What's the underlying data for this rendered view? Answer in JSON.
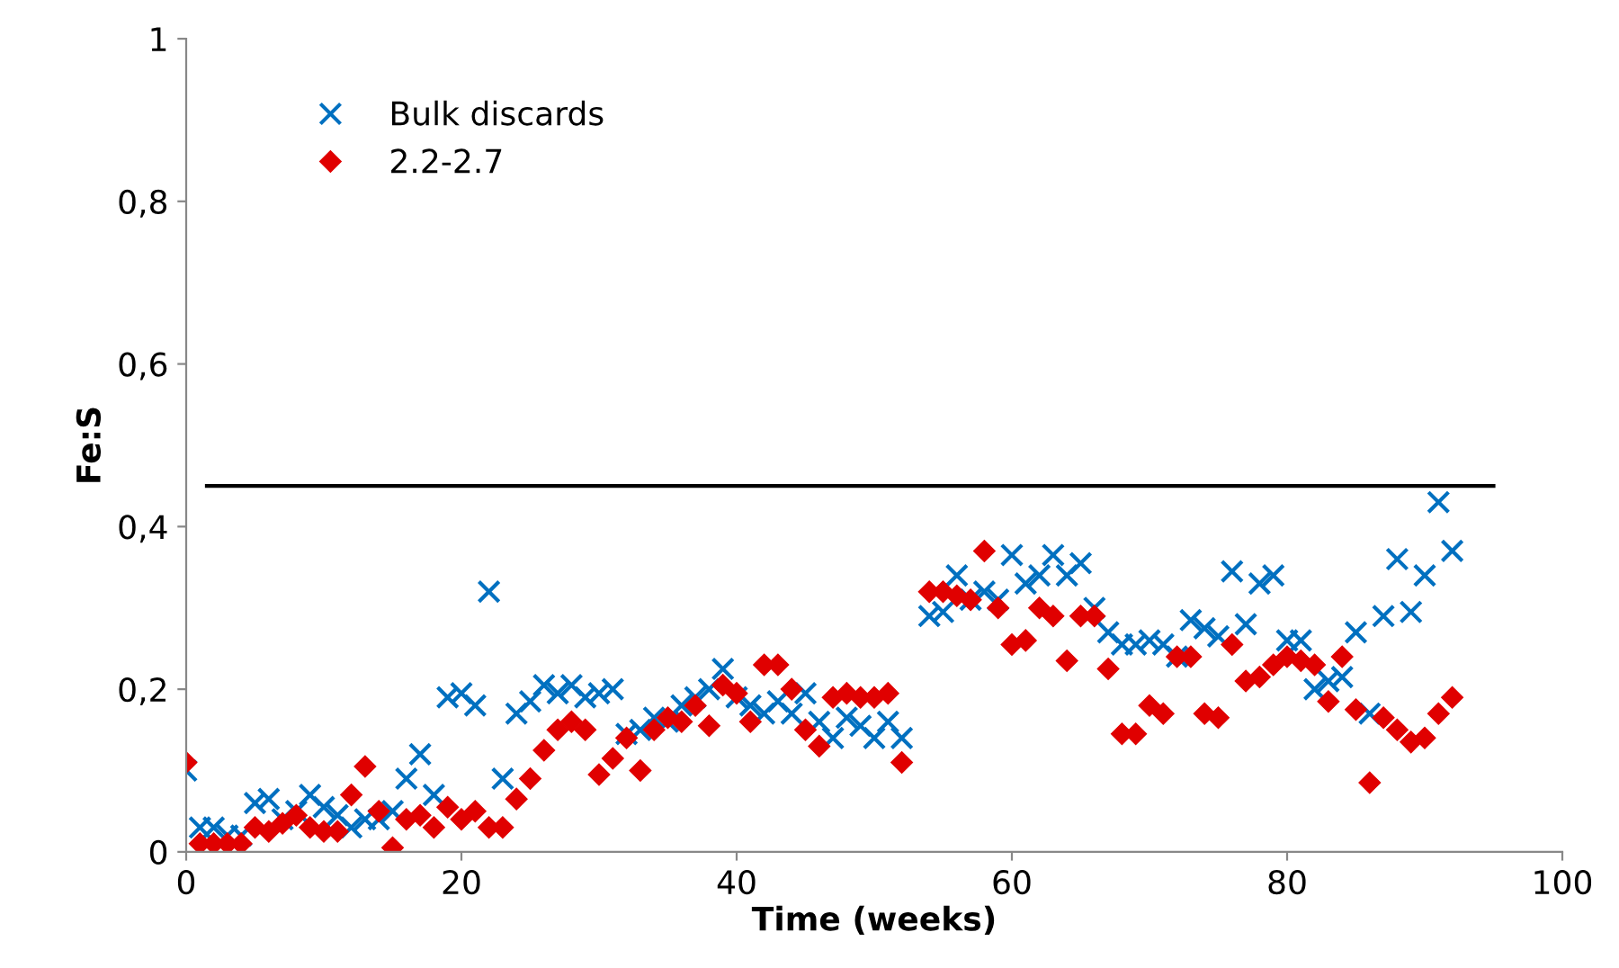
{
  "chart_data": {
    "type": "scatter",
    "xlabel": "Time (weeks)",
    "ylabel": "Fe:S",
    "x": [
      0,
      1,
      2,
      3,
      4,
      5,
      6,
      7,
      8,
      9,
      10,
      11,
      12,
      13,
      14,
      15,
      16,
      17,
      18,
      19,
      20,
      21,
      22,
      23,
      24,
      25,
      26,
      27,
      28,
      29,
      30,
      31,
      32,
      33,
      34,
      35,
      36,
      37,
      38,
      39,
      40,
      41,
      42,
      43,
      44,
      45,
      46,
      47,
      48,
      49,
      50,
      51,
      52,
      54,
      55,
      56,
      57,
      58,
      59,
      60,
      61,
      62,
      63,
      64,
      65,
      66,
      67,
      68,
      69,
      70,
      71,
      72,
      73,
      74,
      75,
      76,
      77,
      78,
      79,
      80,
      81,
      82,
      83,
      84,
      85,
      86,
      87,
      88,
      89,
      90,
      91,
      92
    ],
    "series": [
      {
        "name": "Bulk discards",
        "color": "#0070c0",
        "marker": "cross",
        "values": [
          0.1,
          0.03,
          0.03,
          0.02,
          0.02,
          0.06,
          0.065,
          0.04,
          0.05,
          0.07,
          0.055,
          0.045,
          0.03,
          0.04,
          0.04,
          0.05,
          0.09,
          0.12,
          0.07,
          0.19,
          0.195,
          0.18,
          0.32,
          0.09,
          0.17,
          0.185,
          0.205,
          0.195,
          0.205,
          0.19,
          0.195,
          0.2,
          0.145,
          0.15,
          0.165,
          0.16,
          0.18,
          0.19,
          0.2,
          0.225,
          0.19,
          0.18,
          0.17,
          0.185,
          0.17,
          0.195,
          0.16,
          0.14,
          0.165,
          0.155,
          0.14,
          0.16,
          0.14,
          0.29,
          0.295,
          0.34,
          0.31,
          0.32,
          0.31,
          0.365,
          0.33,
          0.34,
          0.365,
          0.34,
          0.355,
          0.3,
          0.27,
          0.255,
          0.255,
          0.26,
          0.255,
          0.24,
          0.285,
          0.275,
          0.265,
          0.345,
          0.28,
          0.33,
          0.34,
          0.26,
          0.26,
          0.2,
          0.21,
          0.215,
          0.27,
          0.17,
          0.29,
          0.36,
          0.295,
          0.34,
          0.43,
          0.37
        ]
      },
      {
        "name": "2.2-2.7",
        "color": "#e00000",
        "marker": "diamond",
        "values": [
          0.11,
          0.01,
          0.01,
          0.01,
          0.01,
          0.03,
          0.025,
          0.035,
          0.045,
          0.03,
          0.025,
          0.025,
          0.07,
          0.105,
          0.05,
          0.005,
          0.04,
          0.045,
          0.03,
          0.055,
          0.04,
          0.05,
          0.03,
          0.03,
          0.065,
          0.09,
          0.125,
          0.15,
          0.16,
          0.15,
          0.095,
          0.115,
          0.14,
          0.1,
          0.15,
          0.165,
          0.16,
          0.18,
          0.155,
          0.205,
          0.195,
          0.16,
          0.23,
          0.23,
          0.2,
          0.15,
          0.13,
          0.19,
          0.195,
          0.19,
          0.19,
          0.195,
          0.11,
          0.32,
          0.32,
          0.315,
          0.31,
          0.37,
          0.3,
          0.255,
          0.26,
          0.3,
          0.29,
          0.235,
          0.29,
          0.29,
          0.225,
          0.145,
          0.145,
          0.18,
          0.17,
          0.24,
          0.24,
          0.17,
          0.165,
          0.255,
          0.21,
          0.215,
          0.23,
          0.24,
          0.235,
          0.23,
          0.185,
          0.24,
          0.175,
          0.085,
          0.165,
          0.15,
          0.135,
          0.14,
          0.17,
          0.19
        ]
      },
      {
        "type": "line",
        "color": "#000000",
        "marker": "none",
        "x": [
          1.5,
          95
        ],
        "values": [
          0.45,
          0.45
        ]
      }
    ],
    "xlim": [
      0,
      100
    ],
    "xticks": [
      0,
      20,
      40,
      60,
      80,
      100
    ],
    "ylim": [
      0,
      1
    ],
    "yticks": [
      0,
      {
        "value": 0.2,
        "label": "0,2"
      },
      {
        "value": 0.4,
        "label": "0,4"
      },
      {
        "value": 0.6,
        "label": "0,6"
      },
      {
        "value": 0.8,
        "label": "0,8"
      },
      1
    ],
    "grid": false,
    "legend": "top left"
  }
}
